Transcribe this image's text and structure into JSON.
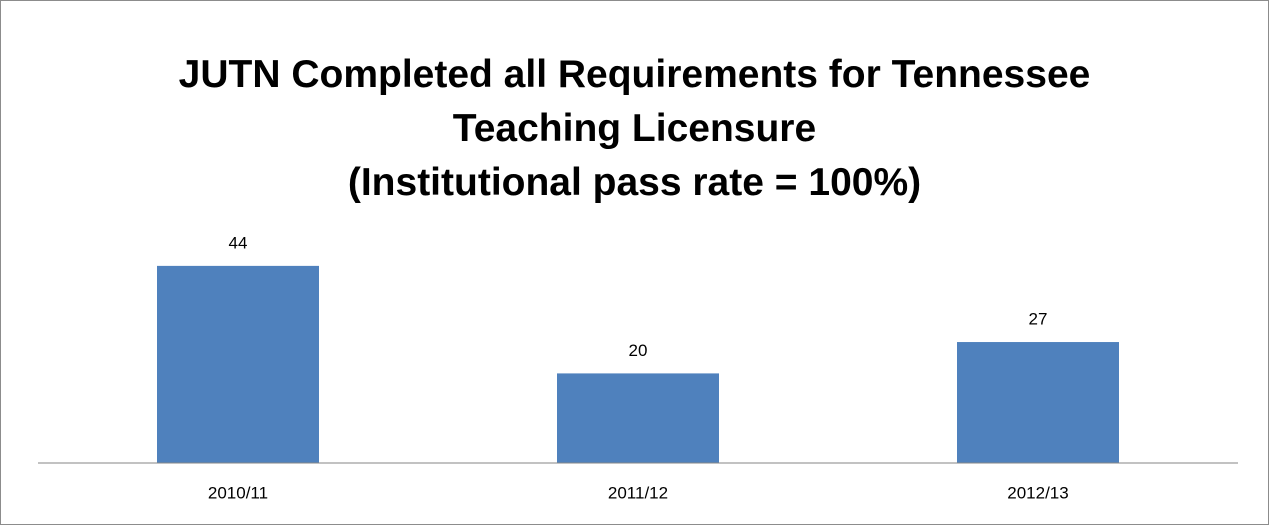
{
  "chart_data": {
    "type": "bar",
    "title": "JUTN Completed all Requirements for Tennessee Teaching Licensure",
    "subtitle": "(Institutional pass rate = 100%)",
    "categories": [
      "2010/11",
      "2011/12",
      "2012/13"
    ],
    "values": [
      44,
      20,
      27
    ],
    "color": "#4f81bd",
    "ylim": [
      0,
      50
    ]
  }
}
